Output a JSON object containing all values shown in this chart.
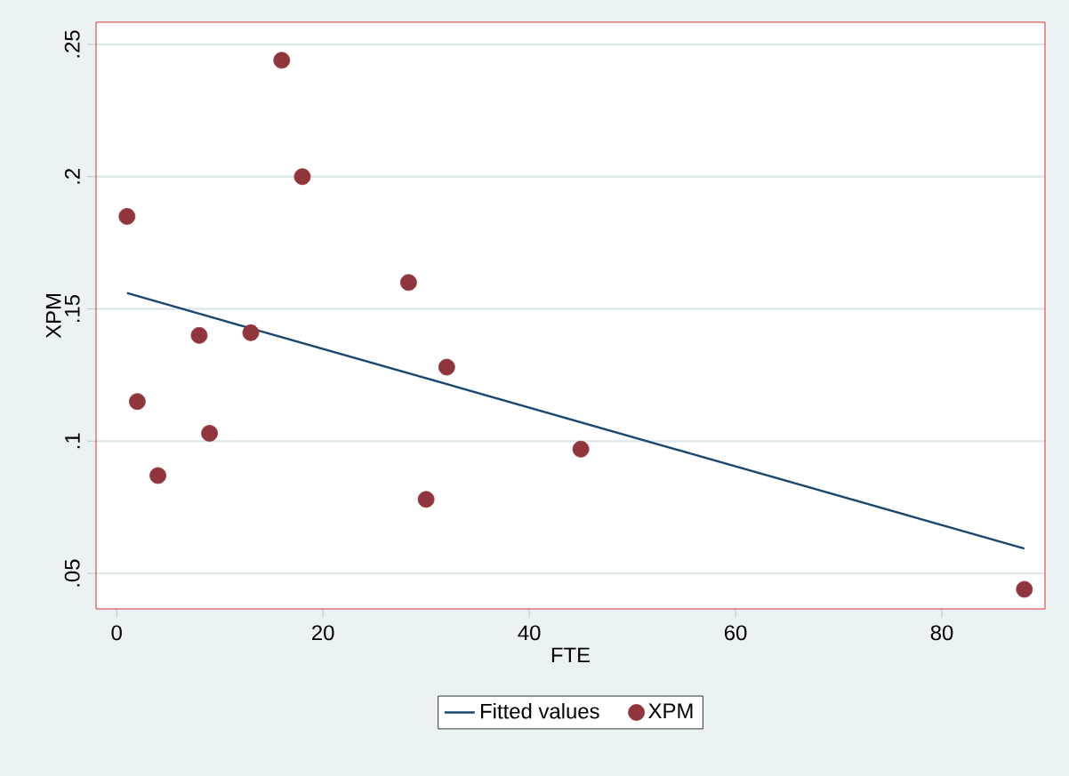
{
  "chart_data": {
    "type": "scatter",
    "xlabel": "FTE",
    "ylabel": "XPM",
    "series": [
      {
        "name": "Fitted values",
        "type": "line",
        "color": "#1a476f",
        "marker": "none",
        "line_style": "solid",
        "x": [
          1,
          88
        ],
        "values": [
          0.156,
          0.0594
        ]
      },
      {
        "name": "XPM",
        "color": "#90353b",
        "marker": "circle",
        "x": [
          1,
          2,
          4,
          8,
          9,
          13,
          16,
          18,
          28.3,
          30,
          32,
          45,
          88
        ],
        "values": [
          0.185,
          0.115,
          0.087,
          0.14,
          0.103,
          0.141,
          0.244,
          0.2,
          0.16,
          0.078,
          0.128,
          0.097,
          0.044
        ]
      }
    ],
    "xlim": [
      -2,
      90
    ],
    "ylim": [
      0.0366,
      0.2584
    ],
    "xticks": [
      0,
      20,
      40,
      60,
      80
    ],
    "yticks": [
      {
        "value": 0.05,
        "label": ".05"
      },
      {
        "value": 0.1,
        "label": ".1"
      },
      {
        "value": 0.15,
        "label": ".15"
      },
      {
        "value": 0.2,
        "label": ".2"
      },
      {
        "value": 0.25,
        "label": ".25"
      }
    ],
    "grid": "y",
    "legend": "bottom"
  }
}
